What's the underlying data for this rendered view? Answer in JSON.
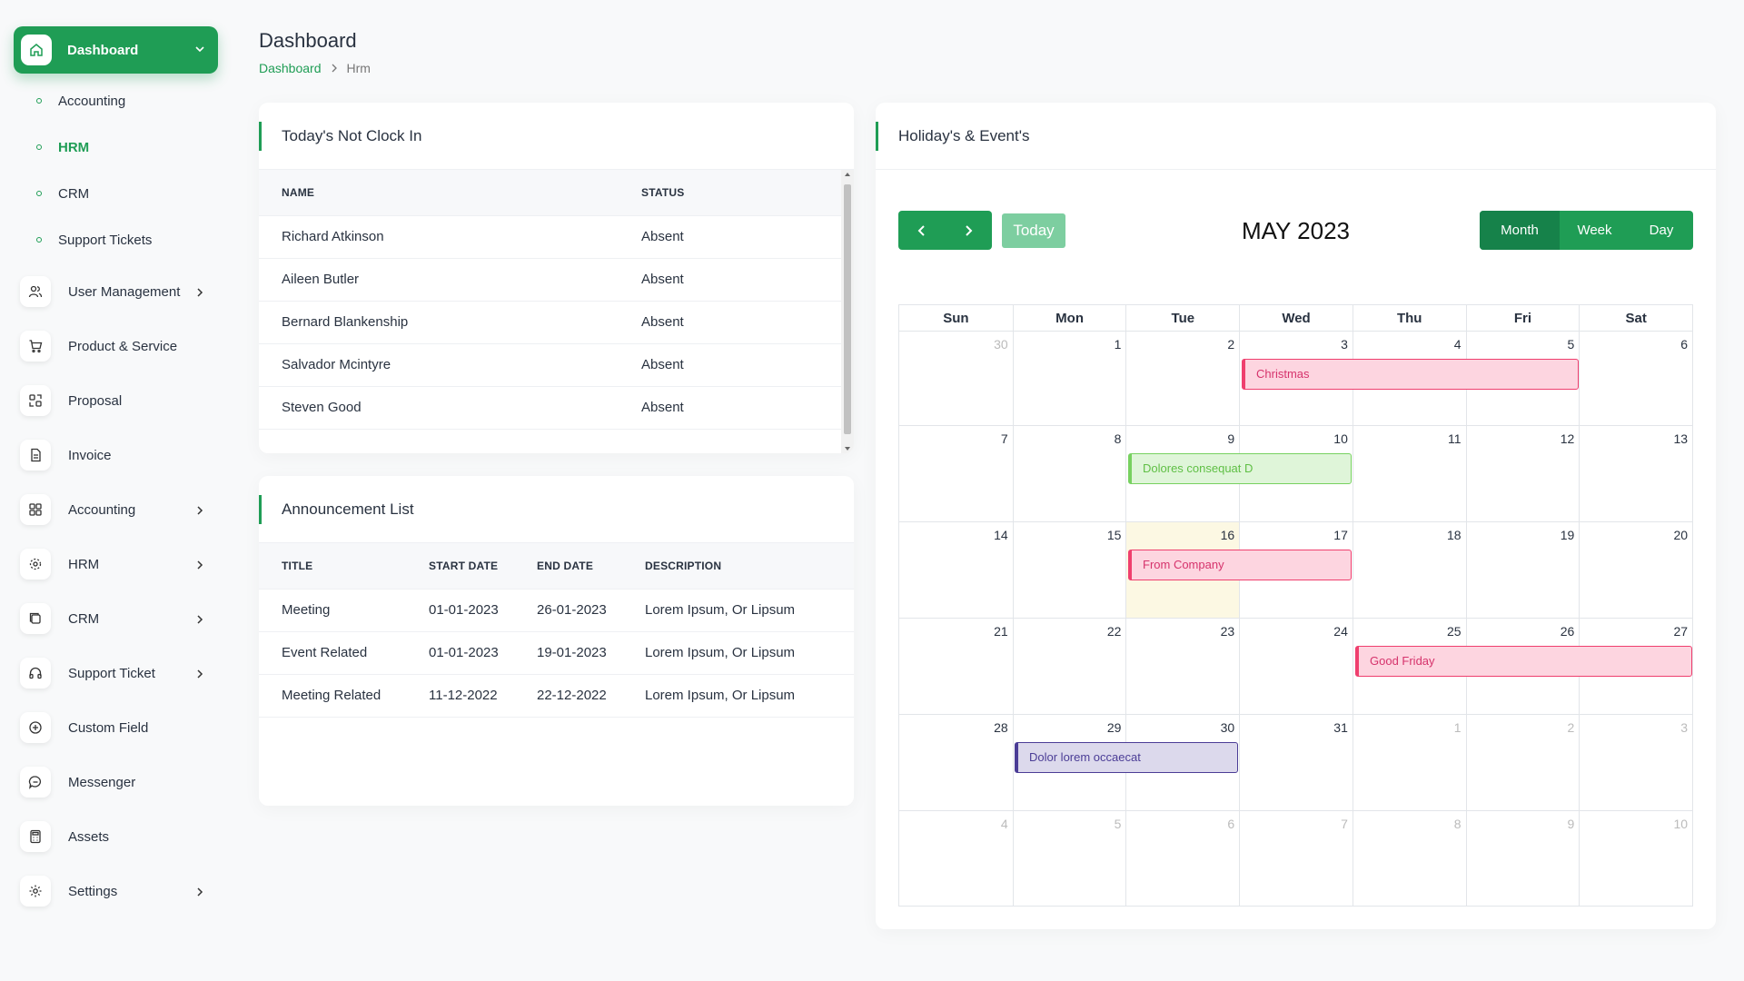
{
  "sidebar": {
    "active": {
      "label": "Dashboard",
      "icon": "home-icon"
    },
    "sub_items": [
      {
        "label": "Accounting",
        "active": false
      },
      {
        "label": "HRM",
        "active": true
      },
      {
        "label": "CRM",
        "active": false
      },
      {
        "label": "Support Tickets",
        "active": false
      }
    ],
    "items": [
      {
        "label": "User Management",
        "icon": "users-icon",
        "has_children": true
      },
      {
        "label": "Product & Service",
        "icon": "cart-icon",
        "has_children": false
      },
      {
        "label": "Proposal",
        "icon": "proposal-icon",
        "has_children": false
      },
      {
        "label": "Invoice",
        "icon": "invoice-icon",
        "has_children": false
      },
      {
        "label": "Accounting",
        "icon": "grid-icon",
        "has_children": true
      },
      {
        "label": "HRM",
        "icon": "hrm-icon",
        "has_children": true
      },
      {
        "label": "CRM",
        "icon": "crm-icon",
        "has_children": true
      },
      {
        "label": "Support Ticket",
        "icon": "headphones-icon",
        "has_children": true
      },
      {
        "label": "Custom Field",
        "icon": "plus-circle-icon",
        "has_children": false
      },
      {
        "label": "Messenger",
        "icon": "chat-icon",
        "has_children": false
      },
      {
        "label": "Assets",
        "icon": "calculator-icon",
        "has_children": false
      },
      {
        "label": "Settings",
        "icon": "gear-icon",
        "has_children": true
      }
    ]
  },
  "header": {
    "title": "Dashboard",
    "breadcrumb": {
      "link": "Dashboard",
      "current": "Hrm"
    }
  },
  "not_clock_in": {
    "title": "Today's Not Clock In",
    "columns": {
      "name": "NAME",
      "status": "STATUS"
    },
    "rows": [
      {
        "name": "Richard Atkinson",
        "status": "Absent"
      },
      {
        "name": "Aileen Butler",
        "status": "Absent"
      },
      {
        "name": "Bernard Blankenship",
        "status": "Absent"
      },
      {
        "name": "Salvador Mcintyre",
        "status": "Absent"
      },
      {
        "name": "Steven Good",
        "status": "Absent"
      }
    ]
  },
  "announcements": {
    "title": "Announcement List",
    "columns": {
      "title": "TITLE",
      "start": "START DATE",
      "end": "END DATE",
      "desc": "DESCRIPTION"
    },
    "rows": [
      {
        "title": "Meeting",
        "start": "01-01-2023",
        "end": "26-01-2023",
        "desc": "Lorem Ipsum, Or Lipsum"
      },
      {
        "title": "Event Related",
        "start": "01-01-2023",
        "end": "19-01-2023",
        "desc": "Lorem Ipsum, Or Lipsum"
      },
      {
        "title": "Meeting Related",
        "start": "11-12-2022",
        "end": "22-12-2022",
        "desc": "Lorem Ipsum, Or Lipsum"
      }
    ]
  },
  "calendar": {
    "title": "Holiday's & Event's",
    "month_title": "MAY 2023",
    "today_label": "Today",
    "views": [
      {
        "label": "Month",
        "active": true
      },
      {
        "label": "Week",
        "active": false
      },
      {
        "label": "Day",
        "active": false
      }
    ],
    "weekdays": [
      "Sun",
      "Mon",
      "Tue",
      "Wed",
      "Thu",
      "Fri",
      "Sat"
    ],
    "weeks": [
      [
        {
          "d": "30",
          "o": true
        },
        {
          "d": "1"
        },
        {
          "d": "2"
        },
        {
          "d": "3"
        },
        {
          "d": "4"
        },
        {
          "d": "5"
        },
        {
          "d": "6"
        }
      ],
      [
        {
          "d": "7"
        },
        {
          "d": "8"
        },
        {
          "d": "9"
        },
        {
          "d": "10"
        },
        {
          "d": "11"
        },
        {
          "d": "12"
        },
        {
          "d": "13"
        }
      ],
      [
        {
          "d": "14"
        },
        {
          "d": "15"
        },
        {
          "d": "16",
          "today": true
        },
        {
          "d": "17"
        },
        {
          "d": "18"
        },
        {
          "d": "19"
        },
        {
          "d": "20"
        }
      ],
      [
        {
          "d": "21"
        },
        {
          "d": "22"
        },
        {
          "d": "23"
        },
        {
          "d": "24"
        },
        {
          "d": "25"
        },
        {
          "d": "26"
        },
        {
          "d": "27"
        }
      ],
      [
        {
          "d": "28"
        },
        {
          "d": "29"
        },
        {
          "d": "30"
        },
        {
          "d": "31"
        },
        {
          "d": "1",
          "o": true
        },
        {
          "d": "2",
          "o": true
        },
        {
          "d": "3",
          "o": true
        }
      ],
      [
        {
          "d": "4",
          "o": true
        },
        {
          "d": "5",
          "o": true
        },
        {
          "d": "6",
          "o": true
        },
        {
          "d": "7",
          "o": true
        },
        {
          "d": "8",
          "o": true
        },
        {
          "d": "9",
          "o": true
        },
        {
          "d": "10",
          "o": true
        }
      ]
    ],
    "events": [
      {
        "title": "Christmas",
        "week": 0,
        "start_col": 3,
        "span": 3,
        "bg": "#fdd5e0",
        "border": "#ef3f6e",
        "color": "#d6336c"
      },
      {
        "title": "Dolores consequat D",
        "week": 1,
        "start_col": 2,
        "span": 2,
        "bg": "#dff5d9",
        "border": "#77d160",
        "color": "#5fbf45"
      },
      {
        "title": "From Company",
        "week": 2,
        "start_col": 2,
        "span": 2,
        "bg": "#fdd5e0",
        "border": "#ef3f6e",
        "color": "#d6336c"
      },
      {
        "title": "Good Friday",
        "week": 3,
        "start_col": 4,
        "span": 3,
        "bg": "#fdd5e0",
        "border": "#ef3f6e",
        "color": "#d6336c"
      },
      {
        "title": "Dolor lorem occaecat",
        "week": 4,
        "start_col": 1,
        "span": 2,
        "bg": "#dcd9ec",
        "border": "#4b3d96",
        "color": "#4b3d96"
      }
    ]
  },
  "colors": {
    "accent": "#1f9d55"
  }
}
